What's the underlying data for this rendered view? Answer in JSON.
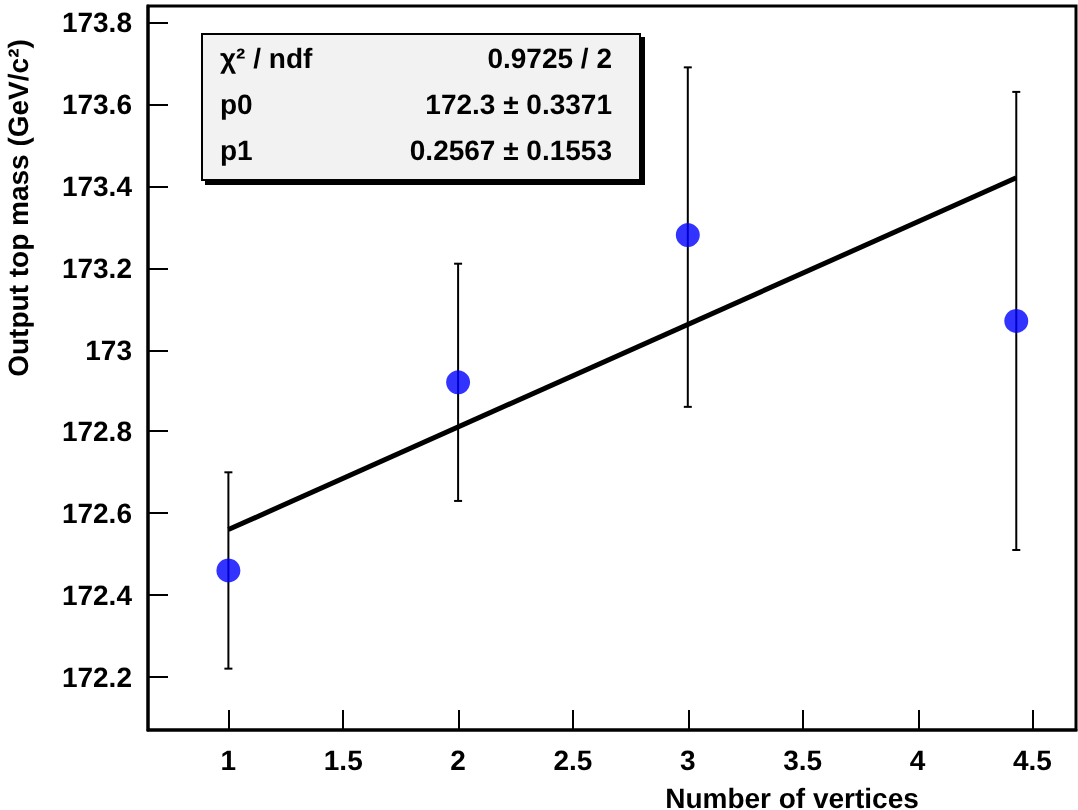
{
  "chart_data": {
    "type": "scatter",
    "xlabel": "Number of vertices",
    "ylabel": "Output top mass (GeV/c²)",
    "series": [
      {
        "color": "#0000ff",
        "marker": "circle",
        "x": [
          1,
          2,
          3,
          4.43
        ],
        "values": [
          172.46,
          172.92,
          173.28,
          173.07
        ],
        "errors": [
          [
            172.22,
            172.7
          ],
          [
            172.63,
            173.21
          ],
          [
            172.86,
            173.69
          ],
          [
            172.51,
            173.63
          ]
        ]
      },
      {
        "type": "line",
        "color": "#000000",
        "marker": "none",
        "x": [
          1,
          4.43
        ],
        "values": [
          172.56,
          173.42
        ]
      }
    ],
    "xlim": [
      0.65,
      4.69
    ],
    "xticks": [
      1,
      1.5,
      2,
      2.5,
      3,
      3.5,
      4,
      4.5
    ],
    "ylim": [
      172.07,
      173.84
    ],
    "yticks": [
      172.2,
      172.4,
      172.6,
      172.8,
      173,
      173.2,
      173.4,
      173.6,
      173.8
    ],
    "grid": false,
    "annotations": [
      "χ² / ndf",
      "0.9725 / 2",
      "p0",
      "172.3 ± 0.3371",
      "p1",
      "0.2567 ± 0.1553"
    ]
  }
}
